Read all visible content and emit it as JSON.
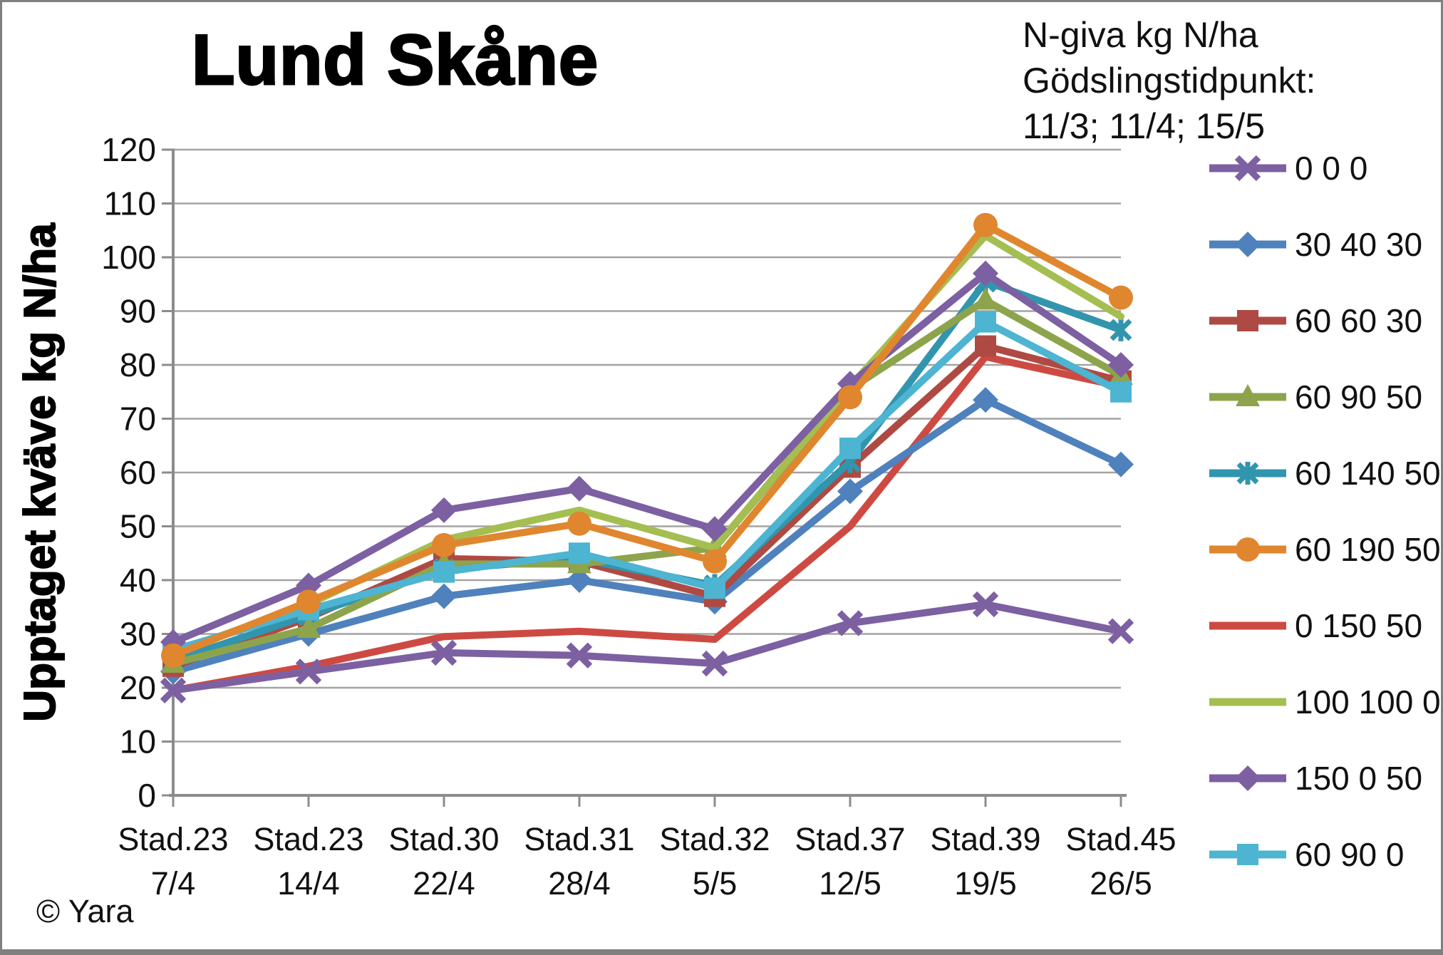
{
  "title": "Lund Skåne",
  "footer": {
    "copyright": "© Yara"
  },
  "legend_header": {
    "line1": "N-giva kg N/ha",
    "line2": "Gödslingstidpunkt:",
    "line3": "11/3; 11/4; 15/5"
  },
  "chart_data": {
    "type": "line",
    "title": "Lund Skåne",
    "xlabel": "",
    "ylabel": "Upptaget kväve kg N/ha",
    "ylim": [
      0,
      120
    ],
    "ytick_step": 10,
    "grid": true,
    "legend_position": "right",
    "categories": [
      {
        "stage": "Stad.23",
        "date": "7/4"
      },
      {
        "stage": "Stad.23",
        "date": "14/4"
      },
      {
        "stage": "Stad.30",
        "date": "22/4"
      },
      {
        "stage": "Stad.31",
        "date": "28/4"
      },
      {
        "stage": "Stad.32",
        "date": "5/5"
      },
      {
        "stage": "Stad.37",
        "date": "12/5"
      },
      {
        "stage": "Stad.39",
        "date": "19/5"
      },
      {
        "stage": "Stad.45",
        "date": "26/5"
      }
    ],
    "series": [
      {
        "name": "0 0 0",
        "color": "#7c60a2",
        "marker": "x",
        "values": [
          19.5,
          23,
          26.5,
          26,
          24.5,
          32,
          35.5,
          30.5
        ]
      },
      {
        "name": "30 40 30",
        "color": "#4f81bd",
        "marker": "diamond",
        "values": [
          23,
          30,
          37,
          40,
          36,
          56.5,
          73.5,
          61.5
        ]
      },
      {
        "name": "60 60 30",
        "color": "#ae4a43",
        "marker": "square",
        "values": [
          24,
          33,
          44,
          43.5,
          37,
          61,
          83.5,
          77
        ]
      },
      {
        "name": "60 90 50",
        "color": "#8da44c",
        "marker": "triangle",
        "values": [
          24.5,
          31,
          43,
          43,
          46,
          75.5,
          92,
          78
        ]
      },
      {
        "name": "60 140 50",
        "color": "#3295ae",
        "marker": "star",
        "values": [
          25,
          33.5,
          42,
          44,
          39,
          62,
          95.5,
          86.5
        ]
      },
      {
        "name": "60 190 50",
        "color": "#e0862f",
        "marker": "circle",
        "values": [
          26,
          36,
          46.5,
          50.5,
          43.5,
          74,
          106,
          92.5
        ]
      },
      {
        "name": "0 150 50",
        "color": "#cd4a42",
        "marker": "none",
        "values": [
          19.5,
          24,
          29.5,
          30.5,
          29,
          50,
          81.5,
          76
        ]
      },
      {
        "name": "100 100 0",
        "color": "#a5be51",
        "marker": "none",
        "values": [
          26.5,
          35.5,
          47.5,
          53,
          46,
          76,
          104,
          89
        ]
      },
      {
        "name": "150 0 50",
        "color": "#7c60a2",
        "marker": "diamond",
        "values": [
          28.5,
          39,
          53,
          57,
          49.5,
          76.5,
          97,
          80
        ]
      },
      {
        "name": "60 90 0",
        "color": "#4db4d2",
        "marker": "square",
        "values": [
          27,
          34.5,
          41.5,
          45,
          38.5,
          64.5,
          88,
          75
        ]
      }
    ],
    "draw_order": [
      "0 150 50",
      "0 0 0",
      "30 40 30",
      "60 60 30",
      "60 140 50",
      "60 90 50",
      "100 100 0",
      "60 90 0",
      "150 0 50",
      "60 190 50"
    ]
  }
}
